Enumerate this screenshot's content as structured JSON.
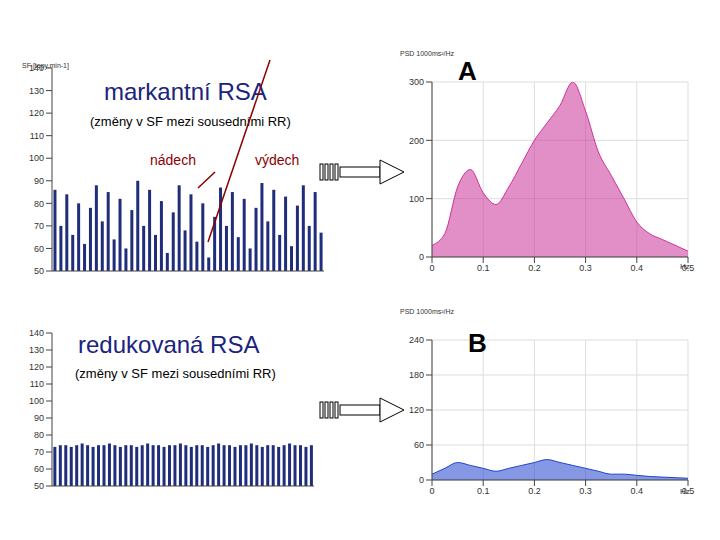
{
  "chart_data": [
    {
      "type": "bar",
      "title": "markantní RSA",
      "subtitle": "(změny v SF mezi sousedními RR)",
      "annotations": [
        "nádech",
        "výdech"
      ],
      "y_label": "SF [tepy.min-1]",
      "values": [
        86,
        70,
        84,
        66,
        80,
        62,
        78,
        88,
        72,
        85,
        64,
        82,
        60,
        77,
        90,
        70,
        86,
        66,
        81,
        58,
        76,
        88,
        68,
        84,
        63,
        80,
        56,
        74,
        87,
        70,
        85,
        65,
        82,
        60,
        78,
        89,
        72,
        86,
        66,
        83,
        61,
        79,
        88,
        70,
        85,
        67
      ],
      "color": "#1f2d7a",
      "ylim": [
        50,
        140
      ],
      "yticks": [
        50,
        60,
        70,
        80,
        90,
        100,
        110,
        120,
        130,
        140
      ],
      "tick_labels": "y"
    },
    {
      "type": "bar",
      "title": "redukovaná RSA",
      "subtitle": "(změny v SF mezi sousedními RR)",
      "values": [
        73,
        74,
        74,
        73,
        74,
        75,
        74,
        73,
        74,
        74,
        75,
        74,
        73,
        74,
        74,
        73,
        74,
        75,
        74,
        74,
        73,
        74,
        74,
        75,
        74,
        73,
        74,
        74,
        73,
        74,
        75,
        74,
        74,
        73,
        74,
        74,
        75,
        74,
        73,
        74,
        74,
        73,
        74,
        75,
        74,
        74,
        73,
        74
      ],
      "color": "#1f2d7a",
      "ylim": [
        50,
        140
      ],
      "yticks": [
        50,
        60,
        70,
        80,
        90,
        100,
        110,
        120,
        130,
        140
      ],
      "tick_labels": "y"
    },
    {
      "type": "area",
      "title": "A",
      "y_label": "PSD 1000ms²/Hz",
      "x_label": "Hz",
      "x": [
        0,
        0.025,
        0.05,
        0.075,
        0.1,
        0.125,
        0.15,
        0.175,
        0.2,
        0.225,
        0.25,
        0.275,
        0.3,
        0.325,
        0.35,
        0.375,
        0.4,
        0.425,
        0.45,
        0.475,
        0.5
      ],
      "values": [
        20,
        40,
        120,
        150,
        110,
        90,
        120,
        160,
        200,
        230,
        260,
        300,
        250,
        180,
        140,
        100,
        60,
        40,
        30,
        20,
        10
      ],
      "color": "#cc3399",
      "xlim": [
        0,
        0.5
      ],
      "xticks": [
        0,
        0.1,
        0.2,
        0.3,
        0.4,
        0.5
      ],
      "ylim": [
        0,
        300
      ],
      "yticks": [
        0,
        100,
        200,
        300
      ]
    },
    {
      "type": "area",
      "title": "B",
      "y_label": "PSD 1000ms²/Hz",
      "x_label": "Hz",
      "x": [
        0,
        0.025,
        0.05,
        0.075,
        0.1,
        0.125,
        0.15,
        0.175,
        0.2,
        0.225,
        0.25,
        0.275,
        0.3,
        0.325,
        0.35,
        0.375,
        0.4,
        0.425,
        0.45,
        0.475,
        0.5
      ],
      "values": [
        10,
        20,
        30,
        25,
        20,
        15,
        20,
        25,
        30,
        35,
        30,
        25,
        20,
        15,
        10,
        10,
        8,
        6,
        5,
        4,
        3
      ],
      "color": "#2244cc",
      "xlim": [
        0,
        0.5
      ],
      "xticks": [
        0,
        0.1,
        0.2,
        0.3,
        0.4,
        0.5
      ],
      "ylim": [
        0,
        240
      ],
      "yticks": [
        0,
        60,
        120,
        180,
        240
      ]
    }
  ]
}
